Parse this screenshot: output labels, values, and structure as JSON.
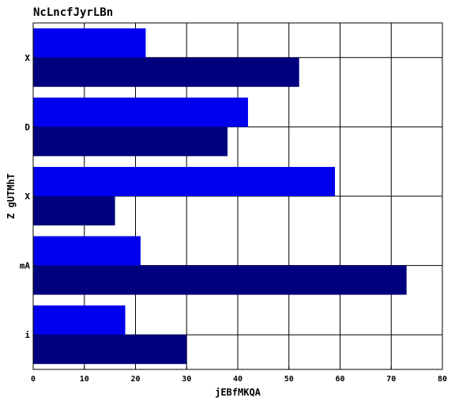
{
  "chart_data": {
    "type": "bar",
    "orientation": "horizontal",
    "title": "NcLncfJyrLBn",
    "xlabel": "jEBfMKQA",
    "ylabel": "Z gUTMhT",
    "categories": [
      "X",
      "D",
      "X",
      "mA",
      "i"
    ],
    "series": [
      {
        "name": "",
        "color": "#0000ee",
        "values": [
          22,
          42,
          59,
          21,
          18
        ]
      },
      {
        "name": "",
        "color": "#00007f",
        "values": [
          52,
          38,
          16,
          73,
          30
        ]
      }
    ],
    "xlim": [
      0,
      80
    ],
    "xticks": [
      0,
      10,
      20,
      30,
      40,
      50,
      60,
      70,
      80
    ],
    "grid": true
  }
}
